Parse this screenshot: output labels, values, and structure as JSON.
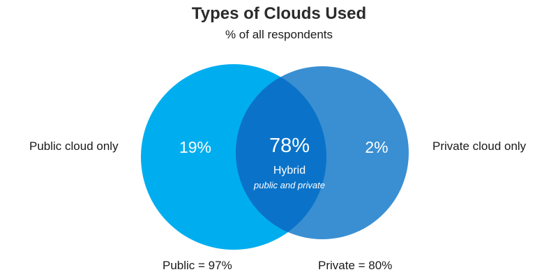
{
  "title": "Types of Clouds Used",
  "subtitle": "% of all respondents",
  "colors": {
    "public_circle": "#00aeef",
    "private_circle": "#3a8fd2",
    "overlap": "#0a73c9"
  },
  "sets": {
    "public": {
      "side_label": "Public cloud only",
      "only_value": "19%",
      "total_label": "Public = 97%"
    },
    "private": {
      "side_label": "Private cloud only",
      "only_value": "2%",
      "total_label": "Private = 80%"
    },
    "overlap": {
      "value": "78%",
      "label": "Hybrid",
      "sublabel": "public and private"
    }
  }
}
